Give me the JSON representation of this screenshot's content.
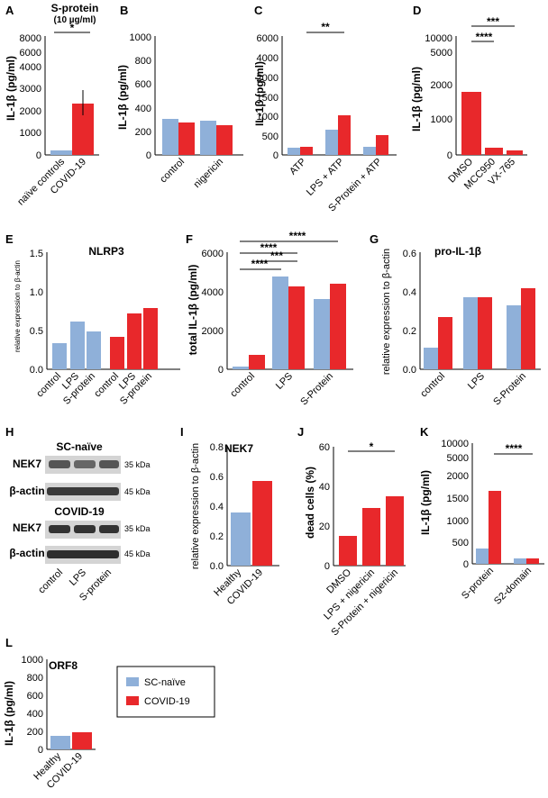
{
  "colors": {
    "blue": "#8fb0d9",
    "red": "#e8282b"
  },
  "legend": {
    "items": [
      "SC-naïve",
      "COVID-19"
    ]
  },
  "chart_data": [
    {
      "panel": "A",
      "type": "bar",
      "title": "S-protein",
      "subtitle": "(10 µg/ml)",
      "ylabel": "IL-1β (pg/ml)",
      "categories": [
        "naïve controls",
        "COVID-19"
      ],
      "values": [
        150,
        2350
      ],
      "ylim": [
        0,
        8000
      ],
      "yticks": [
        "0",
        "1000",
        "2000",
        "3000",
        "4000",
        "6000",
        "8000"
      ],
      "significance": "*"
    },
    {
      "panel": "B",
      "type": "bar",
      "title": "",
      "ylabel": "IL-1β (pg/ml)",
      "categories": [
        "control",
        "nigericin"
      ],
      "series": [
        {
          "name": "SC-naïve",
          "values": [
            300,
            290
          ]
        },
        {
          "name": "COVID-19",
          "values": [
            270,
            250
          ]
        }
      ],
      "ylim": [
        0,
        1000
      ],
      "yticks": [
        "0",
        "200",
        "400",
        "600",
        "800",
        "1000"
      ]
    },
    {
      "panel": "C",
      "type": "bar",
      "title": "",
      "ylabel": "IL-1β (pg/ml)",
      "categories": [
        "ATP",
        "LPS + ATP",
        "S-Protein + ATP"
      ],
      "series": [
        {
          "name": "SC-naïve",
          "values": [
            180,
            650,
            200
          ]
        },
        {
          "name": "COVID-19",
          "values": [
            200,
            1020,
            520
          ]
        }
      ],
      "ylim": [
        0,
        6000
      ],
      "yticks": [
        "0",
        "500",
        "1000",
        "1500",
        "2000",
        "4000",
        "6000"
      ],
      "significance": "**"
    },
    {
      "panel": "D",
      "type": "bar",
      "title": "",
      "ylabel": "IL-1β (pg/ml)",
      "categories": [
        "DMSO",
        "MCC950",
        "VX-765"
      ],
      "values": [
        1800,
        200,
        120
      ],
      "ylim": [
        0,
        10000
      ],
      "yticks": [
        "0",
        "1000",
        "2000",
        "5000",
        "10000"
      ],
      "significance": [
        "****",
        "***"
      ]
    },
    {
      "panel": "E",
      "type": "bar",
      "title": "NLRP3",
      "ylabel": "relative expression to β-actin",
      "categories": [
        "control",
        "LPS",
        "S-protein",
        "control",
        "LPS",
        "S-protein"
      ],
      "values": [
        0.33,
        0.61,
        0.48,
        0.42,
        0.72,
        0.79
      ],
      "ylim": [
        0,
        1.5
      ],
      "yticks": [
        "0.0",
        "0.5",
        "1.0",
        "1.5"
      ]
    },
    {
      "panel": "F",
      "type": "bar",
      "title": "",
      "ylabel": "total IL-1β (pg/ml)",
      "categories": [
        "control",
        "LPS",
        "S-Protein"
      ],
      "series": [
        {
          "name": "SC-naïve",
          "values": [
            150,
            4800,
            3650
          ]
        },
        {
          "name": "COVID-19",
          "values": [
            750,
            4280,
            4450
          ]
        }
      ],
      "ylim": [
        0,
        6000
      ],
      "yticks": [
        "0",
        "2000",
        "4000",
        "6000"
      ],
      "significance": [
        "****",
        "****",
        "***",
        "****"
      ]
    },
    {
      "panel": "G",
      "type": "bar",
      "title": "pro-IL-1β",
      "ylabel": "relative expression to β-actin",
      "categories": [
        "control",
        "LPS",
        "S-Protein"
      ],
      "series": [
        {
          "name": "SC-naïve",
          "values": [
            0.11,
            0.37,
            0.33
          ]
        },
        {
          "name": "COVID-19",
          "values": [
            0.27,
            0.37,
            0.42
          ]
        }
      ],
      "ylim": [
        0,
        0.6
      ],
      "yticks": [
        "0.0",
        "0.2",
        "0.4",
        "0.6"
      ]
    },
    {
      "panel": "I",
      "type": "bar",
      "title": "NEK7",
      "ylabel": "relative expression to β-actin",
      "categories": [
        "Healthy",
        "COVID-19"
      ],
      "values": [
        0.36,
        0.57
      ],
      "ylim": [
        0,
        0.8
      ],
      "yticks": [
        "0.0",
        "0.2",
        "0.4",
        "0.6",
        "0.8"
      ]
    },
    {
      "panel": "J",
      "type": "bar",
      "title": "",
      "ylabel": "dead cells (%)",
      "categories": [
        "DMSO",
        "LPS + nigericin",
        "S-Protein + nigericin"
      ],
      "values": [
        15,
        29,
        35
      ],
      "ylim": [
        0,
        60
      ],
      "yticks": [
        "0",
        "20",
        "40",
        "60"
      ],
      "significance": "*"
    },
    {
      "panel": "K",
      "type": "bar",
      "title": "",
      "ylabel": "IL-1β (pg/ml)",
      "categories": [
        "S-protein",
        "S2-domain"
      ],
      "series": [
        {
          "name": "SC-naïve",
          "values": [
            350,
            120
          ]
        },
        {
          "name": "COVID-19",
          "values": [
            1650,
            130
          ]
        }
      ],
      "ylim": [
        0,
        10000
      ],
      "yticks": [
        "0",
        "500",
        "1000",
        "1500",
        "2000",
        "5000",
        "10000"
      ],
      "significance": "****"
    },
    {
      "panel": "L",
      "type": "bar",
      "title": "ORF8",
      "ylabel": "IL-1β (pg/ml)",
      "categories": [
        "Healthy",
        "COVID-19"
      ],
      "values": [
        150,
        185
      ],
      "ylim": [
        0,
        1000
      ],
      "yticks": [
        "0",
        "200",
        "400",
        "600",
        "800",
        "1000"
      ]
    }
  ],
  "blot": {
    "panel": "H",
    "groups": [
      {
        "title": "SC-naïve",
        "rows": [
          {
            "label": "NEK7",
            "kda": "35 kDa"
          },
          {
            "label": "β-actin",
            "kda": "45 kDa"
          }
        ]
      },
      {
        "title": "COVID-19",
        "rows": [
          {
            "label": "NEK7",
            "kda": "35 kDa"
          },
          {
            "label": "β-actin",
            "kda": "45 kDa"
          }
        ]
      }
    ],
    "lanes": [
      "control",
      "LPS",
      "S-protein"
    ]
  }
}
